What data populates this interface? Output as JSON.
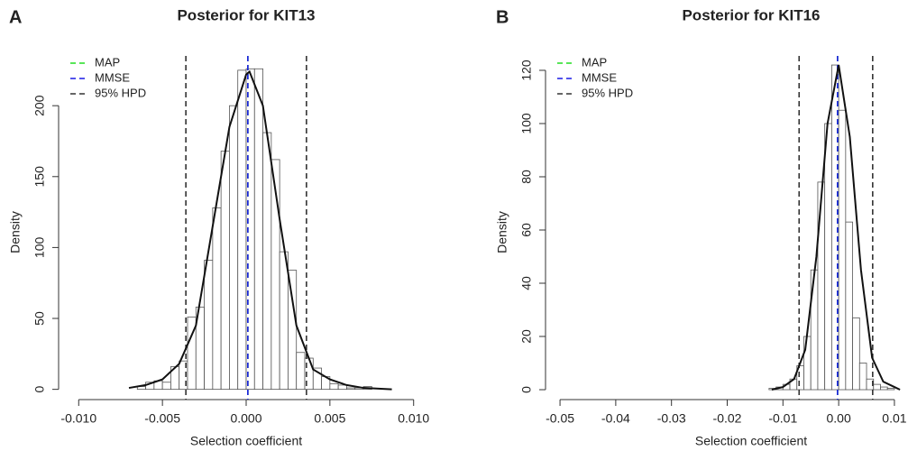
{
  "chart_data": [
    {
      "type": "histogram",
      "panel_label": "A",
      "title": "Posterior for KIT13",
      "xlabel": "Selection coefficient",
      "ylabel": "Density",
      "bins": [
        -0.0065,
        -0.006,
        -0.0055,
        -0.005,
        -0.0045,
        -0.004,
        -0.0035,
        -0.003,
        -0.0025,
        -0.002,
        -0.0015,
        -0.001,
        -0.0005,
        0,
        0.0005,
        0.001,
        0.0015,
        0.002,
        0.0025,
        0.003,
        0.0035,
        0.004,
        0.0045,
        0.005,
        0.0055,
        0.006,
        0.0065,
        0.007,
        0.0075
      ],
      "counts": [
        2,
        5,
        6,
        5,
        16,
        20,
        51,
        58,
        91,
        128,
        168,
        200,
        225,
        226,
        226,
        181,
        162,
        97,
        84,
        26,
        22,
        15,
        9,
        4,
        3,
        1,
        1,
        2
      ],
      "density": {
        "x": [
          -0.007,
          -0.006,
          -0.005,
          -0.004,
          -0.003,
          -0.002,
          -0.001,
          0,
          0.0002,
          0.001,
          0.002,
          0.003,
          0.004,
          0.005,
          0.006,
          0.007,
          0.0087
        ],
        "values": [
          1,
          3,
          7,
          18,
          45,
          115,
          185,
          222,
          224,
          200,
          120,
          45,
          14,
          7,
          3,
          1,
          0
        ]
      },
      "lines": [
        {
          "name": "MAP",
          "color": "#22dd22",
          "x": [
            0.0001
          ]
        },
        {
          "name": "MMSE",
          "color": "#1a1ae6",
          "x": [
            0.0001
          ]
        },
        {
          "name": "95% HPD",
          "color": "#333333",
          "x": [
            -0.0036,
            0.0036
          ]
        }
      ],
      "xlim": [
        -0.0112,
        0.0112
      ],
      "ylim": [
        -8.5,
        230
      ],
      "xticks": [
        {
          "value": -0.01,
          "label": "-0.010"
        },
        -0.005,
        {
          "value": 0,
          "label": "0.000"
        },
        0.005,
        {
          "value": 0.01,
          "label": "0.010"
        }
      ],
      "yticks": [
        0,
        50,
        100,
        150,
        200
      ]
    },
    {
      "type": "histogram",
      "panel_label": "B",
      "title": "Posterior for KIT16",
      "xlabel": "Selection coefficient",
      "ylabel": "Density",
      "bins": [
        -0.0125,
        -0.01125,
        -0.01,
        -0.00875,
        -0.0075,
        -0.00625,
        -0.005,
        -0.00375,
        -0.0025,
        -0.00125,
        0,
        0.00125,
        0.0025,
        0.00375,
        0.005,
        0.00625,
        0.0075,
        0.00875,
        0.01
      ],
      "counts": [
        0.5,
        1,
        2,
        4,
        9,
        20,
        45,
        78,
        100,
        122,
        105,
        63,
        27,
        10,
        4,
        2,
        1,
        0.5
      ],
      "density": {
        "x": [
          -0.012,
          -0.01,
          -0.008,
          -0.006,
          -0.004,
          -0.002,
          0,
          0.002,
          0.004,
          0.006,
          0.008,
          0.01,
          0.011
        ],
        "values": [
          0,
          1,
          4,
          15,
          50,
          100,
          122,
          95,
          45,
          12,
          3,
          1,
          0
        ]
      },
      "lines": [
        {
          "name": "MAP",
          "color": "#22dd22",
          "x": [
            -0.0002
          ]
        },
        {
          "name": "MMSE",
          "color": "#1a1ae6",
          "x": [
            -0.0002
          ]
        },
        {
          "name": "95% HPD",
          "color": "#333333",
          "x": [
            -0.0071,
            0.0061
          ]
        }
      ],
      "xlim": [
        -0.0526,
        0.0126
      ],
      "ylim": [
        -4.4,
        122.7
      ],
      "xticks": [
        -0.05,
        -0.04,
        -0.03,
        -0.02,
        -0.01,
        {
          "value": 0,
          "label": "0.00"
        },
        0.01
      ],
      "yticks": [
        0,
        20,
        40,
        60,
        80,
        100,
        120
      ]
    }
  ]
}
